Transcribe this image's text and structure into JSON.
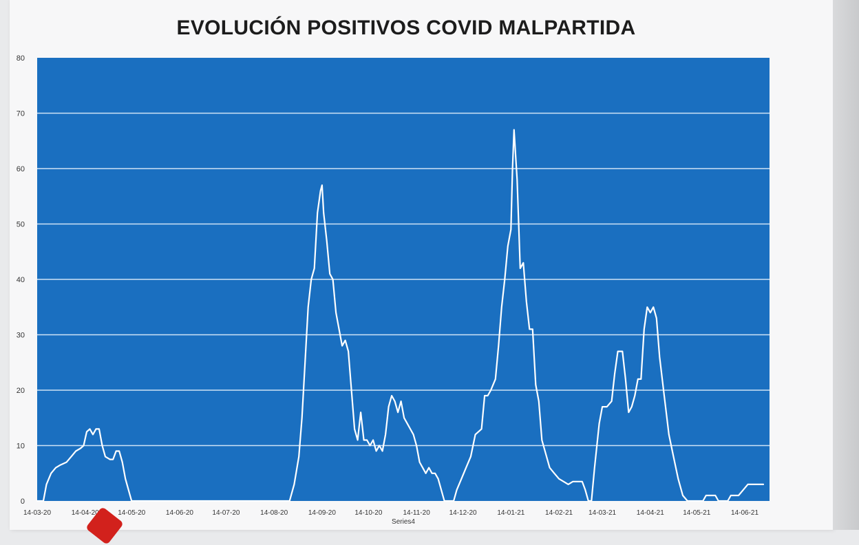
{
  "chart_data": {
    "type": "line",
    "title": "EVOLUCIÓN POSITIVOS COVID MALPARTIDA",
    "xlabel": "Series4",
    "ylabel": "",
    "ylim": [
      0,
      80
    ],
    "y_ticks": [
      0,
      10,
      20,
      30,
      40,
      50,
      60,
      70,
      80
    ],
    "x_tick_labels": [
      "14-03-20",
      "14-04-20",
      "14-05-20",
      "14-06-20",
      "14-07-20",
      "14-08-20",
      "14-09-20",
      "14-10-20",
      "14-11-20",
      "14-12-20",
      "14-01-21",
      "14-02-21",
      "14-03-21",
      "14-04-21",
      "14-05-21",
      "14-06-21"
    ],
    "grid": "horizontal",
    "colors": {
      "plot_bg": "#1a6fc0",
      "line": "#ffffff",
      "grid": "#cfe3f5"
    },
    "series": [
      {
        "points": [
          [
            "2020-03-14",
            0
          ],
          [
            "2020-03-18",
            0
          ],
          [
            "2020-03-20",
            3
          ],
          [
            "2020-03-23",
            5
          ],
          [
            "2020-03-26",
            6
          ],
          [
            "2020-03-29",
            6.5
          ],
          [
            "2020-04-02",
            7
          ],
          [
            "2020-04-05",
            8
          ],
          [
            "2020-04-08",
            9
          ],
          [
            "2020-04-11",
            9.5
          ],
          [
            "2020-04-13",
            10
          ],
          [
            "2020-04-15",
            12.5
          ],
          [
            "2020-04-17",
            13
          ],
          [
            "2020-04-19",
            12
          ],
          [
            "2020-04-21",
            13
          ],
          [
            "2020-04-23",
            13
          ],
          [
            "2020-04-25",
            10
          ],
          [
            "2020-04-27",
            8
          ],
          [
            "2020-04-30",
            7.5
          ],
          [
            "2020-05-02",
            7.5
          ],
          [
            "2020-05-04",
            9
          ],
          [
            "2020-05-06",
            9
          ],
          [
            "2020-05-08",
            7
          ],
          [
            "2020-05-10",
            4
          ],
          [
            "2020-05-12",
            2
          ],
          [
            "2020-05-14",
            0
          ],
          [
            "2020-08-24",
            0
          ],
          [
            "2020-08-27",
            3
          ],
          [
            "2020-08-30",
            8
          ],
          [
            "2020-09-01",
            15
          ],
          [
            "2020-09-03",
            25
          ],
          [
            "2020-09-05",
            35
          ],
          [
            "2020-09-07",
            40
          ],
          [
            "2020-09-09",
            42
          ],
          [
            "2020-09-11",
            52
          ],
          [
            "2020-09-13",
            56
          ],
          [
            "2020-09-14",
            57
          ],
          [
            "2020-09-15",
            52
          ],
          [
            "2020-09-17",
            47
          ],
          [
            "2020-09-19",
            41
          ],
          [
            "2020-09-21",
            40
          ],
          [
            "2020-09-23",
            34
          ],
          [
            "2020-09-25",
            31
          ],
          [
            "2020-09-27",
            28
          ],
          [
            "2020-09-29",
            29
          ],
          [
            "2020-10-01",
            27
          ],
          [
            "2020-10-03",
            20
          ],
          [
            "2020-10-05",
            13
          ],
          [
            "2020-10-07",
            11
          ],
          [
            "2020-10-09",
            16
          ],
          [
            "2020-10-11",
            11
          ],
          [
            "2020-10-13",
            11
          ],
          [
            "2020-10-15",
            10
          ],
          [
            "2020-10-17",
            11
          ],
          [
            "2020-10-19",
            9
          ],
          [
            "2020-10-21",
            10
          ],
          [
            "2020-10-23",
            9
          ],
          [
            "2020-10-25",
            12
          ],
          [
            "2020-10-27",
            17
          ],
          [
            "2020-10-29",
            19
          ],
          [
            "2020-10-31",
            18
          ],
          [
            "2020-11-02",
            16
          ],
          [
            "2020-11-04",
            18
          ],
          [
            "2020-11-06",
            15
          ],
          [
            "2020-11-08",
            14
          ],
          [
            "2020-11-10",
            13
          ],
          [
            "2020-11-12",
            12
          ],
          [
            "2020-11-14",
            10
          ],
          [
            "2020-11-16",
            7
          ],
          [
            "2020-11-18",
            6
          ],
          [
            "2020-11-20",
            5
          ],
          [
            "2020-11-22",
            6
          ],
          [
            "2020-11-24",
            5
          ],
          [
            "2020-11-26",
            5
          ],
          [
            "2020-11-28",
            4
          ],
          [
            "2020-11-30",
            2
          ],
          [
            "2020-12-02",
            0
          ],
          [
            "2020-12-08",
            0
          ],
          [
            "2020-12-10",
            2
          ],
          [
            "2020-12-13",
            4
          ],
          [
            "2020-12-16",
            6
          ],
          [
            "2020-12-19",
            8
          ],
          [
            "2020-12-22",
            12
          ],
          [
            "2020-12-26",
            13
          ],
          [
            "2020-12-28",
            19
          ],
          [
            "2020-12-30",
            19
          ],
          [
            "2021-01-01",
            20
          ],
          [
            "2021-01-04",
            22
          ],
          [
            "2021-01-06",
            28
          ],
          [
            "2021-01-08",
            35
          ],
          [
            "2021-01-10",
            40
          ],
          [
            "2021-01-12",
            46
          ],
          [
            "2021-01-14",
            49
          ],
          [
            "2021-01-15",
            60
          ],
          [
            "2021-01-16",
            67
          ],
          [
            "2021-01-18",
            58
          ],
          [
            "2021-01-20",
            42
          ],
          [
            "2021-01-22",
            43
          ],
          [
            "2021-01-24",
            36
          ],
          [
            "2021-01-26",
            31
          ],
          [
            "2021-01-28",
            31
          ],
          [
            "2021-01-30",
            21
          ],
          [
            "2021-02-01",
            18
          ],
          [
            "2021-02-03",
            11
          ],
          [
            "2021-02-05",
            9
          ],
          [
            "2021-02-08",
            6
          ],
          [
            "2021-02-11",
            5
          ],
          [
            "2021-02-14",
            4
          ],
          [
            "2021-02-17",
            3.5
          ],
          [
            "2021-02-20",
            3
          ],
          [
            "2021-02-23",
            3.5
          ],
          [
            "2021-02-26",
            3.5
          ],
          [
            "2021-03-01",
            3.5
          ],
          [
            "2021-03-03",
            2
          ],
          [
            "2021-03-05",
            0
          ],
          [
            "2021-03-07",
            0
          ],
          [
            "2021-03-09",
            6
          ],
          [
            "2021-03-12",
            14
          ],
          [
            "2021-03-14",
            17
          ],
          [
            "2021-03-17",
            17
          ],
          [
            "2021-03-20",
            18
          ],
          [
            "2021-03-22",
            23
          ],
          [
            "2021-03-24",
            27
          ],
          [
            "2021-03-27",
            27
          ],
          [
            "2021-03-29",
            22
          ],
          [
            "2021-03-31",
            16
          ],
          [
            "2021-04-02",
            17
          ],
          [
            "2021-04-04",
            19
          ],
          [
            "2021-04-06",
            22
          ],
          [
            "2021-04-08",
            22
          ],
          [
            "2021-04-10",
            31
          ],
          [
            "2021-04-12",
            35
          ],
          [
            "2021-04-14",
            34
          ],
          [
            "2021-04-16",
            35
          ],
          [
            "2021-04-18",
            33
          ],
          [
            "2021-04-20",
            26
          ],
          [
            "2021-04-23",
            19
          ],
          [
            "2021-04-26",
            12
          ],
          [
            "2021-04-29",
            8
          ],
          [
            "2021-05-02",
            4
          ],
          [
            "2021-05-05",
            1
          ],
          [
            "2021-05-08",
            0
          ],
          [
            "2021-05-18",
            0
          ],
          [
            "2021-05-20",
            1
          ],
          [
            "2021-05-26",
            1
          ],
          [
            "2021-05-28",
            0
          ],
          [
            "2021-06-03",
            0
          ],
          [
            "2021-06-05",
            1
          ],
          [
            "2021-06-10",
            1
          ],
          [
            "2021-06-13",
            2
          ],
          [
            "2021-06-16",
            3
          ],
          [
            "2021-06-22",
            3
          ],
          [
            "2021-06-26",
            3
          ]
        ]
      }
    ]
  }
}
